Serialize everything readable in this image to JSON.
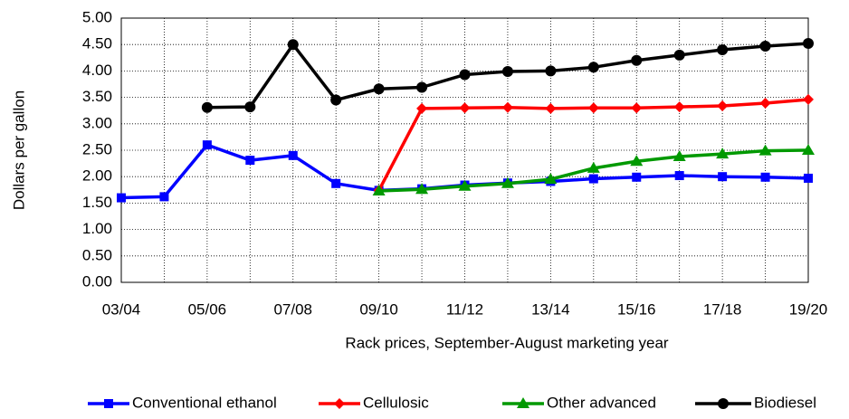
{
  "chart_data": {
    "type": "line",
    "x_label": "Rack prices, September-August marketing year",
    "y_label": "Dollars per gallon",
    "categories": [
      "03/04",
      null,
      "05/06",
      null,
      "07/08",
      null,
      "09/10",
      null,
      "11/12",
      null,
      "13/14",
      null,
      "15/16",
      null,
      "17/18",
      null,
      "19/20"
    ],
    "series": [
      {
        "name": "Conventional ethanol",
        "color": "#0000ff",
        "marker": "square",
        "values": [
          1.6,
          1.62,
          2.6,
          2.31,
          2.4,
          1.87,
          1.74,
          1.77,
          1.84,
          1.88,
          1.91,
          1.96,
          1.99,
          2.02,
          2.0,
          1.99,
          1.97
        ]
      },
      {
        "name": "Cellulosic",
        "color": "#ff0000",
        "marker": "diamond",
        "values": [
          null,
          null,
          null,
          null,
          null,
          null,
          1.74,
          3.29,
          3.3,
          3.31,
          3.29,
          3.3,
          3.3,
          3.32,
          3.34,
          3.39,
          3.46
        ]
      },
      {
        "name": "Other advanced",
        "color": "#009900",
        "marker": "triangle",
        "values": [
          null,
          null,
          null,
          null,
          null,
          null,
          1.73,
          1.76,
          1.82,
          1.87,
          1.95,
          2.16,
          2.29,
          2.38,
          2.43,
          2.49,
          2.5
        ]
      },
      {
        "name": "Biodiesel",
        "color": "#000000",
        "marker": "circle",
        "values": [
          null,
          null,
          3.31,
          3.32,
          4.5,
          3.45,
          3.66,
          3.69,
          3.93,
          3.99,
          4.0,
          4.07,
          4.2,
          4.3,
          4.4,
          4.47,
          4.52
        ]
      }
    ],
    "ylim": [
      0,
      5
    ],
    "yticks": [
      {
        "value": 0,
        "label": "0.00"
      },
      {
        "value": 0.5,
        "label": "0.50"
      },
      {
        "value": 1,
        "label": "1.00"
      },
      {
        "value": 1.5,
        "label": "1.50"
      },
      {
        "value": 2,
        "label": "2.00"
      },
      {
        "value": 2.5,
        "label": "2.50"
      },
      {
        "value": 3,
        "label": "3.00"
      },
      {
        "value": 3.5,
        "label": "3.50"
      },
      {
        "value": 4,
        "label": "4.00"
      },
      {
        "value": 4.5,
        "label": "4.50"
      },
      {
        "value": 5,
        "label": "5.00"
      }
    ],
    "grid": true,
    "legend": "bottom"
  }
}
